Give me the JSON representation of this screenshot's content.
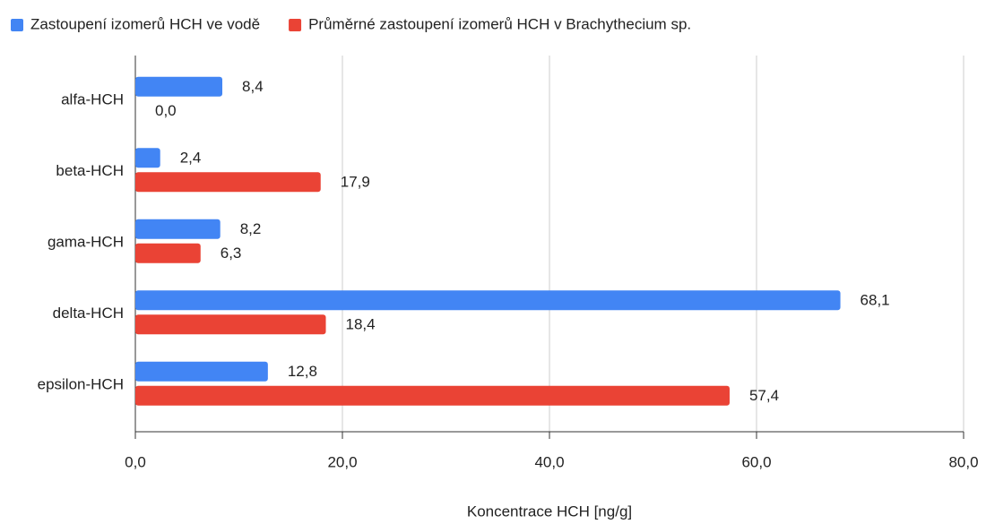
{
  "chart_data": {
    "type": "bar",
    "orientation": "horizontal",
    "x_label": "Koncentrace HCH [ng/g]",
    "categories": [
      "alfa-HCH",
      "beta-HCH",
      "gama-HCH",
      "delta-HCH",
      "epsilon-HCH"
    ],
    "series": [
      {
        "name": "Zastoupení izomerů HCH ve vodě",
        "color": "#4285f4",
        "values": [
          8.4,
          2.4,
          8.2,
          68.1,
          12.8
        ],
        "value_labels": [
          "8,4",
          "2,4",
          "8,2",
          "68,1",
          "12,8"
        ]
      },
      {
        "name": "Průměrné zastoupení izomerů HCH v Brachythecium sp.",
        "color": "#ea4335",
        "values": [
          0.0,
          17.9,
          6.3,
          18.4,
          57.4
        ],
        "value_labels": [
          "0,0",
          "17,9",
          "6,3",
          "18,4",
          "57,4"
        ]
      }
    ],
    "xlim": [
      0,
      80
    ],
    "xticks": [
      {
        "value": 0,
        "label": "0,0"
      },
      {
        "value": 20,
        "label": "20,0"
      },
      {
        "value": 40,
        "label": "40,0"
      },
      {
        "value": 60,
        "label": "60,0"
      },
      {
        "value": 80,
        "label": "80,0"
      }
    ],
    "grid": true,
    "legend": "top"
  }
}
